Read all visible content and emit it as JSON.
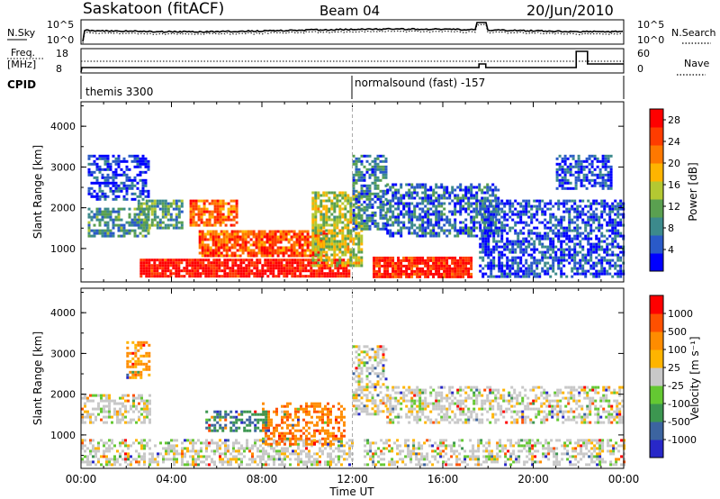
{
  "header": {
    "station": "Saskatoon (fitACF)",
    "beam": "Beam 04",
    "date": "20/Jun/2010"
  },
  "nsky_panel": {
    "left_label": "N.Sky",
    "right_label": "N.Search",
    "ticks_left": [
      "10^5",
      "10^0"
    ],
    "ticks_right": [
      "10^5",
      "10^0"
    ]
  },
  "freq_panel": {
    "left_label_1": "Freq.",
    "left_label_2": "[MHz]",
    "right_label": "Nave",
    "ticks_left": [
      "18",
      "8"
    ],
    "ticks_right": [
      "60",
      "0"
    ]
  },
  "cpid": {
    "label": "CPID",
    "programs": [
      {
        "name": "themis 3300",
        "start_hour": 0
      },
      {
        "name": "normalsound (fast) -157",
        "start_hour": 12
      }
    ]
  },
  "chart_data": [
    {
      "type": "heatmap",
      "parameter": "Power",
      "ylabel": "Slant Range [km]",
      "xlabel": "Time UT",
      "xlim_hours": [
        0,
        24
      ],
      "ylim_km": [
        180,
        4600
      ],
      "yticks": [
        "1000",
        "2000",
        "3000",
        "4000"
      ],
      "xticks": [
        "00:00",
        "04:00",
        "08:00",
        "12:00",
        "16:00",
        "20:00",
        "00:00"
      ],
      "colorbar": {
        "label": "Power [dB]",
        "ticks": [
          "4",
          "8",
          "12",
          "16",
          "20",
          "24",
          "28"
        ],
        "range": [
          0,
          30
        ],
        "colors": [
          "#0000ff",
          "#2a5ac8",
          "#3c8a8c",
          "#5aa050",
          "#b4c832",
          "#ffb400",
          "#ff7800",
          "#ff3c00",
          "#ff0000"
        ]
      },
      "echo_regions": [
        {
          "t0": 2.6,
          "t1": 11.8,
          "r0": 300,
          "r1": 750,
          "level": 0.95
        },
        {
          "t0": 12.9,
          "t1": 17.2,
          "r0": 300,
          "r1": 800,
          "level": 0.92
        },
        {
          "t0": 5.2,
          "t1": 10.9,
          "r0": 850,
          "r1": 1450,
          "level": 0.8
        },
        {
          "t0": 4.8,
          "t1": 6.9,
          "r0": 1600,
          "r1": 2200,
          "level": 0.75
        },
        {
          "t0": 10.2,
          "t1": 12.4,
          "r0": 600,
          "r1": 2400,
          "level": 0.5
        },
        {
          "t0": 0.3,
          "t1": 3.0,
          "r0": 1300,
          "r1": 2000,
          "level": 0.3
        },
        {
          "t0": 2.5,
          "t1": 4.5,
          "r0": 1500,
          "r1": 2200,
          "level": 0.35
        },
        {
          "t0": 12.0,
          "t1": 13.5,
          "r0": 1500,
          "r1": 3300,
          "level": 0.25
        },
        {
          "t0": 13.5,
          "t1": 18.5,
          "r0": 1300,
          "r1": 2600,
          "level": 0.2
        },
        {
          "t0": 17.6,
          "t1": 24.0,
          "r0": 300,
          "r1": 2200,
          "level": 0.15
        },
        {
          "t0": 0.3,
          "t1": 3.0,
          "r0": 2200,
          "r1": 3300,
          "level": 0.12
        },
        {
          "t0": 21.0,
          "t1": 23.5,
          "r0": 2500,
          "r1": 3300,
          "level": 0.15
        }
      ]
    },
    {
      "type": "heatmap",
      "parameter": "Velocity",
      "ylabel": "Slant Range [km]",
      "xlabel": "Time UT",
      "xlim_hours": [
        0,
        24
      ],
      "ylim_km": [
        180,
        4600
      ],
      "yticks": [
        "1000",
        "2000",
        "3000",
        "4000"
      ],
      "xticks": [
        "00:00",
        "04:00",
        "08:00",
        "12:00",
        "16:00",
        "20:00",
        "00:00"
      ],
      "colorbar": {
        "label": "Velocity [m s⁻¹]",
        "ticks": [
          "1000",
          "500",
          "100",
          "25",
          "-25",
          "-100",
          "-500",
          "-1000"
        ],
        "range": [
          -1000,
          1000
        ],
        "colors": [
          "#2828c8",
          "#3c64a0",
          "#3c9650",
          "#64c832",
          "#c8c8c8",
          "#ffb400",
          "#ff8c00",
          "#ff5000",
          "#ff0000"
        ]
      },
      "echo_regions": [
        {
          "t0": 0.0,
          "t1": 12.0,
          "r0": 300,
          "r1": 900,
          "level": 0.5
        },
        {
          "t0": 12.5,
          "t1": 24.0,
          "r0": 250,
          "r1": 900,
          "level": 0.5
        },
        {
          "t0": 0.0,
          "t1": 3.0,
          "r0": 1300,
          "r1": 2000,
          "level": 0.5
        },
        {
          "t0": 8.0,
          "t1": 11.6,
          "r0": 800,
          "r1": 1800,
          "level": 0.75
        },
        {
          "t0": 5.5,
          "t1": 8.2,
          "r0": 1100,
          "r1": 1600,
          "level": 0.25
        },
        {
          "t0": 12.0,
          "t1": 13.5,
          "r0": 1500,
          "r1": 3200,
          "level": 0.5
        },
        {
          "t0": 13.5,
          "t1": 24.0,
          "r0": 1300,
          "r1": 2200,
          "level": 0.5
        },
        {
          "t0": 2.0,
          "t1": 3.0,
          "r0": 2400,
          "r1": 3300,
          "level": 0.7
        }
      ]
    }
  ],
  "axes": {
    "time_label": "Time UT"
  }
}
